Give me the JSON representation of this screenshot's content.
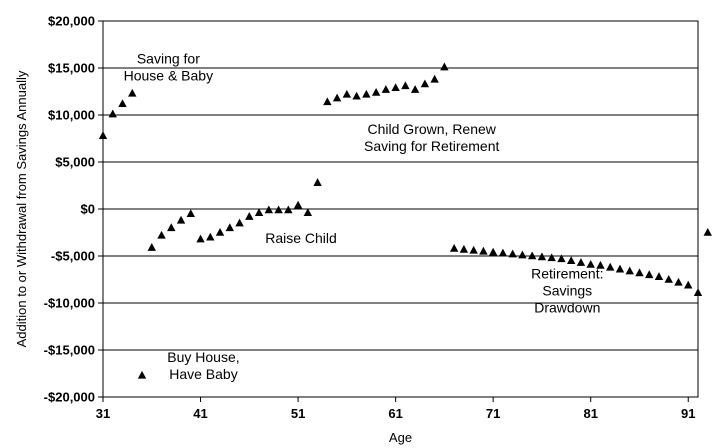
{
  "chart_data": {
    "type": "scatter",
    "xlabel": "Age",
    "ylabel": "Addition to or Withdrawal from Savings Annually",
    "xlim": [
      31,
      92
    ],
    "ylim": [
      -20000,
      20000
    ],
    "x_ticks": [
      31,
      41,
      51,
      61,
      71,
      81,
      91
    ],
    "x_tick_labels": [
      "31",
      "41",
      "51",
      "61",
      "71",
      "81",
      "91"
    ],
    "y_ticks": [
      20000,
      15000,
      10000,
      5000,
      0,
      -5000,
      -10000,
      -15000,
      -20000
    ],
    "y_tick_labels": [
      "$20,000",
      "$15,000",
      "$10,000",
      "$5,000",
      "$0",
      "-$5,000",
      "-$10,000",
      "-$15,000",
      "-$20,000"
    ],
    "grid": "horizontal",
    "marker": "triangle",
    "marker_color": "#000000",
    "annotations": [
      {
        "lines": [
          "Saving for",
          "House & Baby"
        ],
        "x": 37.7,
        "y": 15500
      },
      {
        "lines": [
          "Child Grown, Renew",
          "Saving for Retirement"
        ],
        "x": 64.7,
        "y": 8000
      },
      {
        "lines": [
          "Raise Child"
        ],
        "x": 51.3,
        "y": -3600
      },
      {
        "lines": [
          "Retirement:",
          "Savings",
          "Drawdown"
        ],
        "x": 78.6,
        "y": -7400
      },
      {
        "lines": [
          "Buy House,",
          "Have Baby"
        ],
        "x": 41.3,
        "y": -16300
      }
    ],
    "points": [
      {
        "x": 31,
        "y": 7800
      },
      {
        "x": 32,
        "y": 10100
      },
      {
        "x": 33,
        "y": 11200
      },
      {
        "x": 34,
        "y": 12300
      },
      {
        "x": 35,
        "y": -17700
      },
      {
        "x": 36,
        "y": -4100
      },
      {
        "x": 37,
        "y": -2800
      },
      {
        "x": 38,
        "y": -2000
      },
      {
        "x": 39,
        "y": -1200
      },
      {
        "x": 40,
        "y": -500
      },
      {
        "x": 41,
        "y": -3200
      },
      {
        "x": 42,
        "y": -3000
      },
      {
        "x": 43,
        "y": -2500
      },
      {
        "x": 44,
        "y": -2000
      },
      {
        "x": 45,
        "y": -1500
      },
      {
        "x": 46,
        "y": -800
      },
      {
        "x": 47,
        "y": -400
      },
      {
        "x": 48,
        "y": -100
      },
      {
        "x": 49,
        "y": -100
      },
      {
        "x": 50,
        "y": -100
      },
      {
        "x": 51,
        "y": 400
      },
      {
        "x": 52,
        "y": -400
      },
      {
        "x": 53,
        "y": 2800
      },
      {
        "x": 54,
        "y": 11400
      },
      {
        "x": 55,
        "y": 11800
      },
      {
        "x": 56,
        "y": 12200
      },
      {
        "x": 57,
        "y": 12000
      },
      {
        "x": 58,
        "y": 12200
      },
      {
        "x": 59,
        "y": 12400
      },
      {
        "x": 60,
        "y": 12700
      },
      {
        "x": 61,
        "y": 12900
      },
      {
        "x": 62,
        "y": 13100
      },
      {
        "x": 63,
        "y": 12700
      },
      {
        "x": 64,
        "y": 13300
      },
      {
        "x": 65,
        "y": 13800
      },
      {
        "x": 66,
        "y": 15100
      },
      {
        "x": 67,
        "y": -4200
      },
      {
        "x": 68,
        "y": -4300
      },
      {
        "x": 69,
        "y": -4400
      },
      {
        "x": 70,
        "y": -4500
      },
      {
        "x": 71,
        "y": -4600
      },
      {
        "x": 72,
        "y": -4700
      },
      {
        "x": 73,
        "y": -4800
      },
      {
        "x": 74,
        "y": -4900
      },
      {
        "x": 75,
        "y": -5000
      },
      {
        "x": 76,
        "y": -5100
      },
      {
        "x": 77,
        "y": -5200
      },
      {
        "x": 78,
        "y": -5300
      },
      {
        "x": 79,
        "y": -5500
      },
      {
        "x": 80,
        "y": -5700
      },
      {
        "x": 81,
        "y": -5900
      },
      {
        "x": 82,
        "y": -6000
      },
      {
        "x": 83,
        "y": -6200
      },
      {
        "x": 84,
        "y": -6400
      },
      {
        "x": 85,
        "y": -6600
      },
      {
        "x": 86,
        "y": -6800
      },
      {
        "x": 87,
        "y": -7000
      },
      {
        "x": 88,
        "y": -7200
      },
      {
        "x": 89,
        "y": -7500
      },
      {
        "x": 90,
        "y": -7800
      },
      {
        "x": 91,
        "y": -8100
      },
      {
        "x": 92,
        "y": -8900
      },
      {
        "x": 93,
        "y": -2500
      }
    ]
  }
}
